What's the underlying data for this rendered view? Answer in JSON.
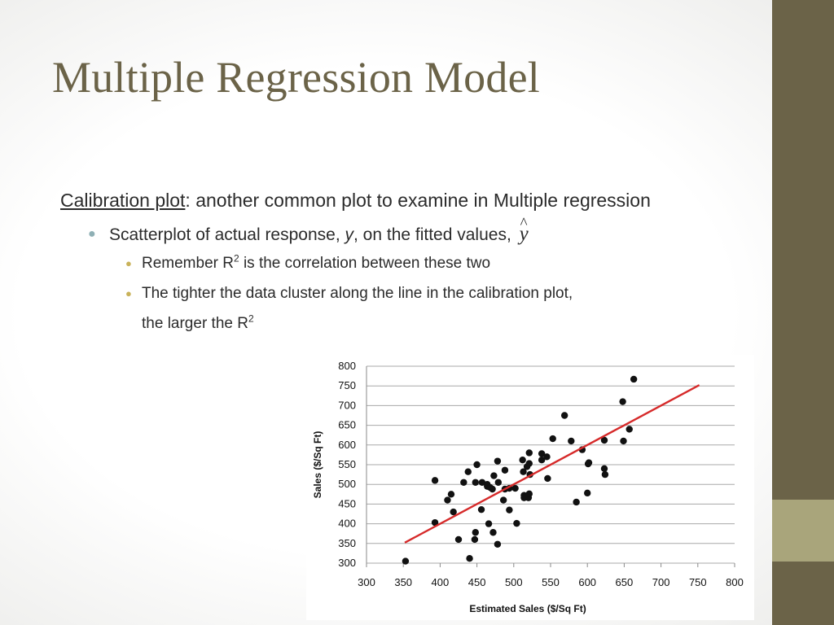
{
  "slide": {
    "title": "Multiple Regression Model",
    "theme_colors": {
      "title": "#6b6348",
      "sidebar": "#6b6348",
      "sidebar_accent": "#a9a57b",
      "bullet1": "#8fb0b5",
      "bullet2": "#c9b25a"
    },
    "lead": {
      "underlined": "Calibration plot",
      "rest": ": another common plot to examine in Multiple regression"
    },
    "bullet1": {
      "pre": "Scatterplot of actual response, ",
      "var": "y",
      "mid": ", on the fitted values, ",
      "yhat": "y"
    },
    "bullet2a": {
      "pre": "Remember R",
      "sup": "2",
      "post": " is the correlation between these two"
    },
    "bullet2b": {
      "line1": "The tighter the data cluster along the line in the calibration plot,",
      "line2_pre": "the larger the R",
      "line2_sup": "2"
    }
  },
  "chart_data": {
    "type": "scatter",
    "xlabel": "Estimated Sales ($/Sq Ft)",
    "ylabel": "Sales ($/Sq Ft)",
    "xlim": [
      300,
      800
    ],
    "ylim": [
      300,
      800
    ],
    "xticks": [
      300,
      350,
      400,
      450,
      500,
      550,
      600,
      650,
      700,
      750,
      800
    ],
    "yticks": [
      300,
      350,
      400,
      450,
      500,
      550,
      600,
      650,
      700,
      750,
      800
    ],
    "grid": "horizontal",
    "point_color": "#111111",
    "line_color": "#d62a2a",
    "fit_line": {
      "x": [
        352,
        752
      ],
      "y": [
        352,
        752
      ]
    },
    "points": [
      [
        353,
        305
      ],
      [
        393,
        510
      ],
      [
        393,
        403
      ],
      [
        410,
        460
      ],
      [
        415,
        475
      ],
      [
        418,
        430
      ],
      [
        425,
        360
      ],
      [
        432,
        505
      ],
      [
        438,
        532
      ],
      [
        440,
        312
      ],
      [
        447,
        360
      ],
      [
        448,
        378
      ],
      [
        448,
        505
      ],
      [
        450,
        550
      ],
      [
        456,
        436
      ],
      [
        457,
        505
      ],
      [
        464,
        495
      ],
      [
        464,
        500
      ],
      [
        466,
        400
      ],
      [
        468,
        492
      ],
      [
        471,
        488
      ],
      [
        472,
        378
      ],
      [
        473,
        522
      ],
      [
        478,
        348
      ],
      [
        478,
        559
      ],
      [
        479,
        505
      ],
      [
        486,
        460
      ],
      [
        488,
        536
      ],
      [
        488,
        488
      ],
      [
        494,
        435
      ],
      [
        494,
        490
      ],
      [
        502,
        490
      ],
      [
        504,
        401
      ],
      [
        512,
        562
      ],
      [
        513,
        532
      ],
      [
        514,
        472
      ],
      [
        514,
        466
      ],
      [
        518,
        545
      ],
      [
        520,
        466
      ],
      [
        521,
        476
      ],
      [
        521,
        580
      ],
      [
        521,
        553
      ],
      [
        522,
        525
      ],
      [
        538,
        578
      ],
      [
        538,
        562
      ],
      [
        545,
        570
      ],
      [
        546,
        515
      ],
      [
        553,
        616
      ],
      [
        569,
        675
      ],
      [
        578,
        610
      ],
      [
        585,
        455
      ],
      [
        593,
        588
      ],
      [
        600,
        478
      ],
      [
        601,
        552
      ],
      [
        602,
        555
      ],
      [
        623,
        612
      ],
      [
        623,
        540
      ],
      [
        624,
        525
      ],
      [
        648,
        710
      ],
      [
        649,
        610
      ],
      [
        657,
        640
      ],
      [
        663,
        767
      ]
    ]
  }
}
